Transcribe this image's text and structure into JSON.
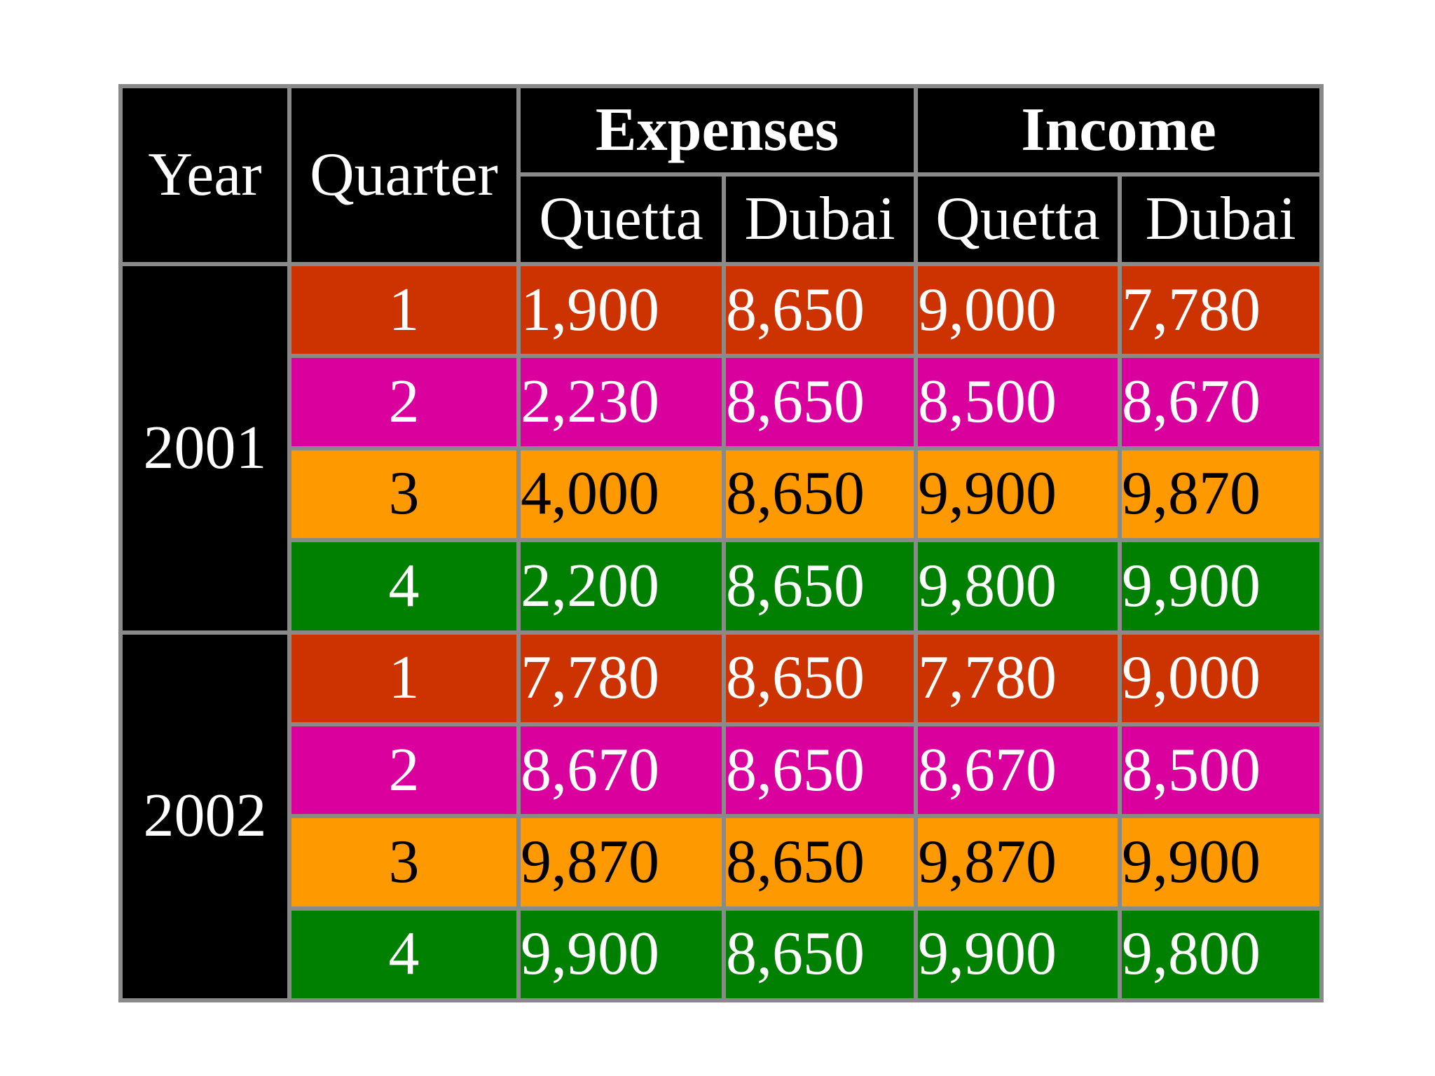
{
  "header": {
    "year": "Year",
    "quarter": "Quarter",
    "expenses": "Expenses",
    "income": "Income",
    "expenses_quetta": "Quetta",
    "expenses_dubai": "Dubai",
    "income_quetta": "Quetta",
    "income_dubai": "Dubai"
  },
  "colors": {
    "q1": "#cc3300",
    "q2": "#d9009d",
    "q3": "#ff9900",
    "q4": "#008000",
    "header": "#000000",
    "grid": "#8a8a8a"
  },
  "years": [
    {
      "year": "2001",
      "rows": [
        {
          "quarter": "1",
          "expenses_quetta": "1,900",
          "expenses_dubai": "8,650",
          "income_quetta": "9,000",
          "income_dubai": "7,780"
        },
        {
          "quarter": "2",
          "expenses_quetta": "2,230",
          "expenses_dubai": "8,650",
          "income_quetta": "8,500",
          "income_dubai": "8,670"
        },
        {
          "quarter": "3",
          "expenses_quetta": "4,000",
          "expenses_dubai": "8,650",
          "income_quetta": "9,900",
          "income_dubai": "9,870"
        },
        {
          "quarter": "4",
          "expenses_quetta": "2,200",
          "expenses_dubai": "8,650",
          "income_quetta": "9,800",
          "income_dubai": "9,900"
        }
      ]
    },
    {
      "year": "2002",
      "rows": [
        {
          "quarter": "1",
          "expenses_quetta": "7,780",
          "expenses_dubai": "8,650",
          "income_quetta": "7,780",
          "income_dubai": "9,000"
        },
        {
          "quarter": "2",
          "expenses_quetta": "8,670",
          "expenses_dubai": "8,650",
          "income_quetta": "8,670",
          "income_dubai": "8,500"
        },
        {
          "quarter": "3",
          "expenses_quetta": "9,870",
          "expenses_dubai": "8,650",
          "income_quetta": "9,870",
          "income_dubai": "9,900"
        },
        {
          "quarter": "4",
          "expenses_quetta": "9,900",
          "expenses_dubai": "8,650",
          "income_quetta": "9,900",
          "income_dubai": "9,800"
        }
      ]
    }
  ]
}
